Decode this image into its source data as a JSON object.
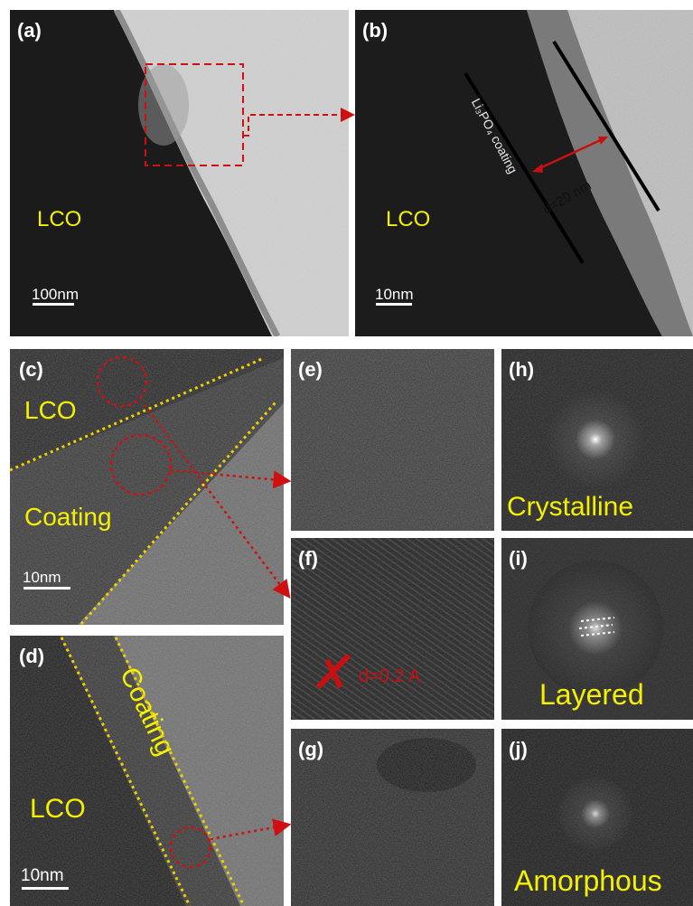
{
  "panels": {
    "a": {
      "label": "(a)",
      "material": "LCO",
      "scalebar": "100nm"
    },
    "b": {
      "label": "(b)",
      "material": "LCO",
      "scalebar": "10nm",
      "coating_label": "Li₃PO₄ coating",
      "thickness": "d=20 nm"
    },
    "c": {
      "label": "(c)",
      "material": "LCO",
      "region": "Coating",
      "scalebar": "10nm"
    },
    "d": {
      "label": "(d)",
      "material": "LCO",
      "region": "Coating",
      "scalebar": "10nm"
    },
    "e": {
      "label": "(e)"
    },
    "f": {
      "label": "(f)",
      "spacing": "d=0.2 A"
    },
    "g": {
      "label": "(g)"
    },
    "h": {
      "label": "(h)",
      "caption": "Crystalline"
    },
    "i": {
      "label": "(i)",
      "caption": "Layered"
    },
    "j": {
      "label": "(j)",
      "caption": "Amorphous"
    }
  },
  "colors": {
    "label_yellow": "#f5f000",
    "arrow_red": "#d01010",
    "guide_yellow": "#f0d000"
  }
}
